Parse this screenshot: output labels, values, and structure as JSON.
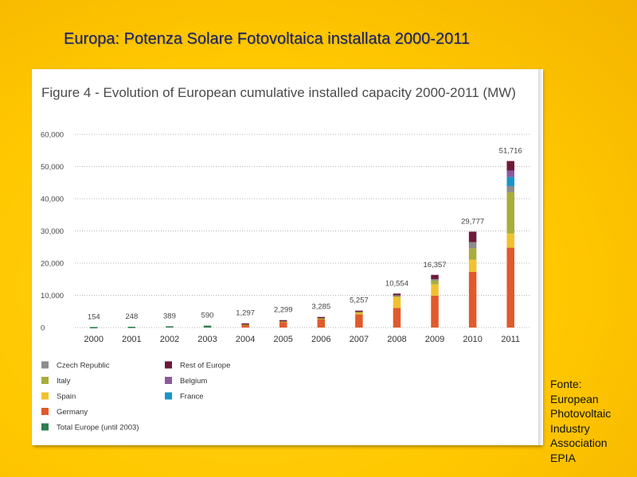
{
  "slide": {
    "title": "Europa: Potenza Solare Fotovoltaica installata 2000-2011",
    "source_lines": [
      "Fonte:",
      "European",
      "Photovoltaic",
      "Industry",
      "Association",
      "EPIA"
    ]
  },
  "figure": {
    "label": "Figure 4",
    "separator": " - ",
    "caption": "Evolution of European cumulative installed capacity 2000-2011 (MW)"
  },
  "chart_data": {
    "type": "bar",
    "stacked": true,
    "title": "Figure 4 - Evolution of European cumulative installed capacity 2000-2011 (MW)",
    "xlabel": "",
    "ylabel": "",
    "ylim": [
      0,
      60000
    ],
    "yticks": [
      0,
      10000,
      20000,
      30000,
      40000,
      50000,
      60000
    ],
    "ytick_labels": [
      "0",
      "10,000",
      "20,000",
      "30,000",
      "40,000",
      "50,000",
      "60,000"
    ],
    "grid": "horizontal dotted",
    "categories": [
      "2000",
      "2001",
      "2002",
      "2003",
      "2004",
      "2005",
      "2006",
      "2007",
      "2008",
      "2009",
      "2010",
      "2011"
    ],
    "totals": [
      154,
      248,
      389,
      590,
      1297,
      2299,
      3285,
      5257,
      10554,
      16357,
      29777,
      51716
    ],
    "total_labels": [
      "154",
      "248",
      "389",
      "590",
      "1,297",
      "2,299",
      "3,285",
      "5,257",
      "10,554",
      "16,357",
      "29,777",
      "51,716"
    ],
    "series": [
      {
        "name": "Total Europe (until 2003)",
        "color": "#2e7d4f",
        "values": [
          154,
          248,
          389,
          590,
          0,
          0,
          0,
          0,
          0,
          0,
          0,
          0
        ]
      },
      {
        "name": "Germany",
        "color": "#e05a2b",
        "values": [
          0,
          0,
          0,
          0,
          1100,
          2000,
          2800,
          4100,
          6100,
          9900,
          17300,
          24800
        ]
      },
      {
        "name": "Spain",
        "color": "#f2c12e",
        "values": [
          0,
          0,
          0,
          0,
          20,
          50,
          120,
          700,
          3400,
          3500,
          3800,
          4400
        ]
      },
      {
        "name": "Italy",
        "color": "#a8ad3b",
        "values": [
          0,
          0,
          0,
          0,
          30,
          40,
          50,
          120,
          460,
          1150,
          3500,
          12800
        ]
      },
      {
        "name": "Czech Republic",
        "color": "#8c8c8c",
        "values": [
          0,
          0,
          0,
          0,
          0,
          0,
          0,
          0,
          60,
          460,
          1950,
          1950
        ]
      },
      {
        "name": "France",
        "color": "#1a95c8",
        "values": [
          0,
          0,
          0,
          0,
          0,
          0,
          0,
          0,
          0,
          0,
          0,
          2800
        ]
      },
      {
        "name": "Belgium",
        "color": "#8b5a9e",
        "values": [
          0,
          0,
          0,
          0,
          0,
          0,
          0,
          0,
          0,
          0,
          0,
          2000
        ]
      },
      {
        "name": "Rest of Europe",
        "color": "#6e1a3a",
        "values": [
          0,
          0,
          0,
          0,
          147,
          209,
          315,
          337,
          534,
          1347,
          3227,
          2966
        ]
      }
    ],
    "legend": {
      "placement": "bottom",
      "columns": [
        [
          "Czech Republic",
          "Italy",
          "Spain",
          "Germany",
          "Total Europe (until 2003)"
        ],
        [
          "Rest of Europe",
          "Belgium",
          "France"
        ]
      ]
    }
  }
}
